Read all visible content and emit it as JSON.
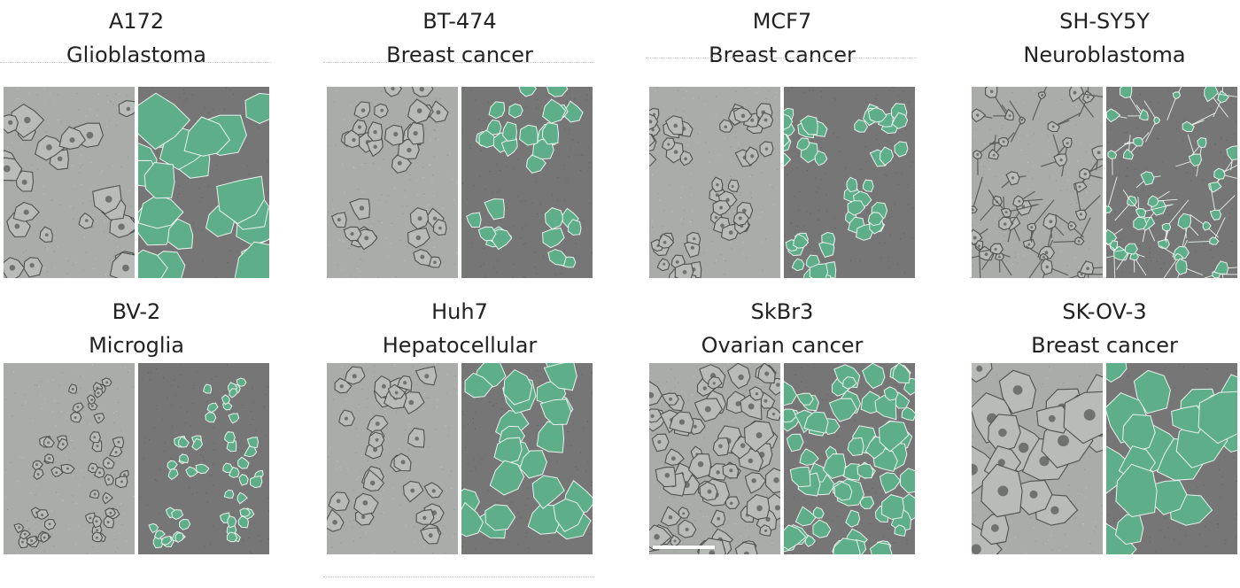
{
  "colors": {
    "phase_bg": "#a9aca9",
    "mask_bg": "#767676",
    "cell_fill": "#5fae8a",
    "cell_outline": "#e9f2ec"
  },
  "panels": [
    {
      "id": "a172",
      "title": "A172",
      "subtitle": "Glioblastoma"
    },
    {
      "id": "bt474",
      "title": "BT-474",
      "subtitle": "Breast cancer"
    },
    {
      "id": "mcf7",
      "title": "MCF7",
      "subtitle": "Breast cancer"
    },
    {
      "id": "shsy5y",
      "title": "SH-SY5Y",
      "subtitle": "Neuroblastoma"
    },
    {
      "id": "bv2",
      "title": "BV-2",
      "subtitle": "Microglia"
    },
    {
      "id": "huh7",
      "title": "Huh7",
      "subtitle": "Hepatocellular"
    },
    {
      "id": "skbr3",
      "title": "SkBr3",
      "subtitle": "Ovarian cancer"
    },
    {
      "id": "skov3",
      "title": "SK-OV-3",
      "subtitle": "Breast cancer"
    }
  ],
  "icons": {
    "phase_image": "phase-contrast-micrograph",
    "mask_image": "segmentation-overlay",
    "scale_bar": "scale-bar"
  }
}
